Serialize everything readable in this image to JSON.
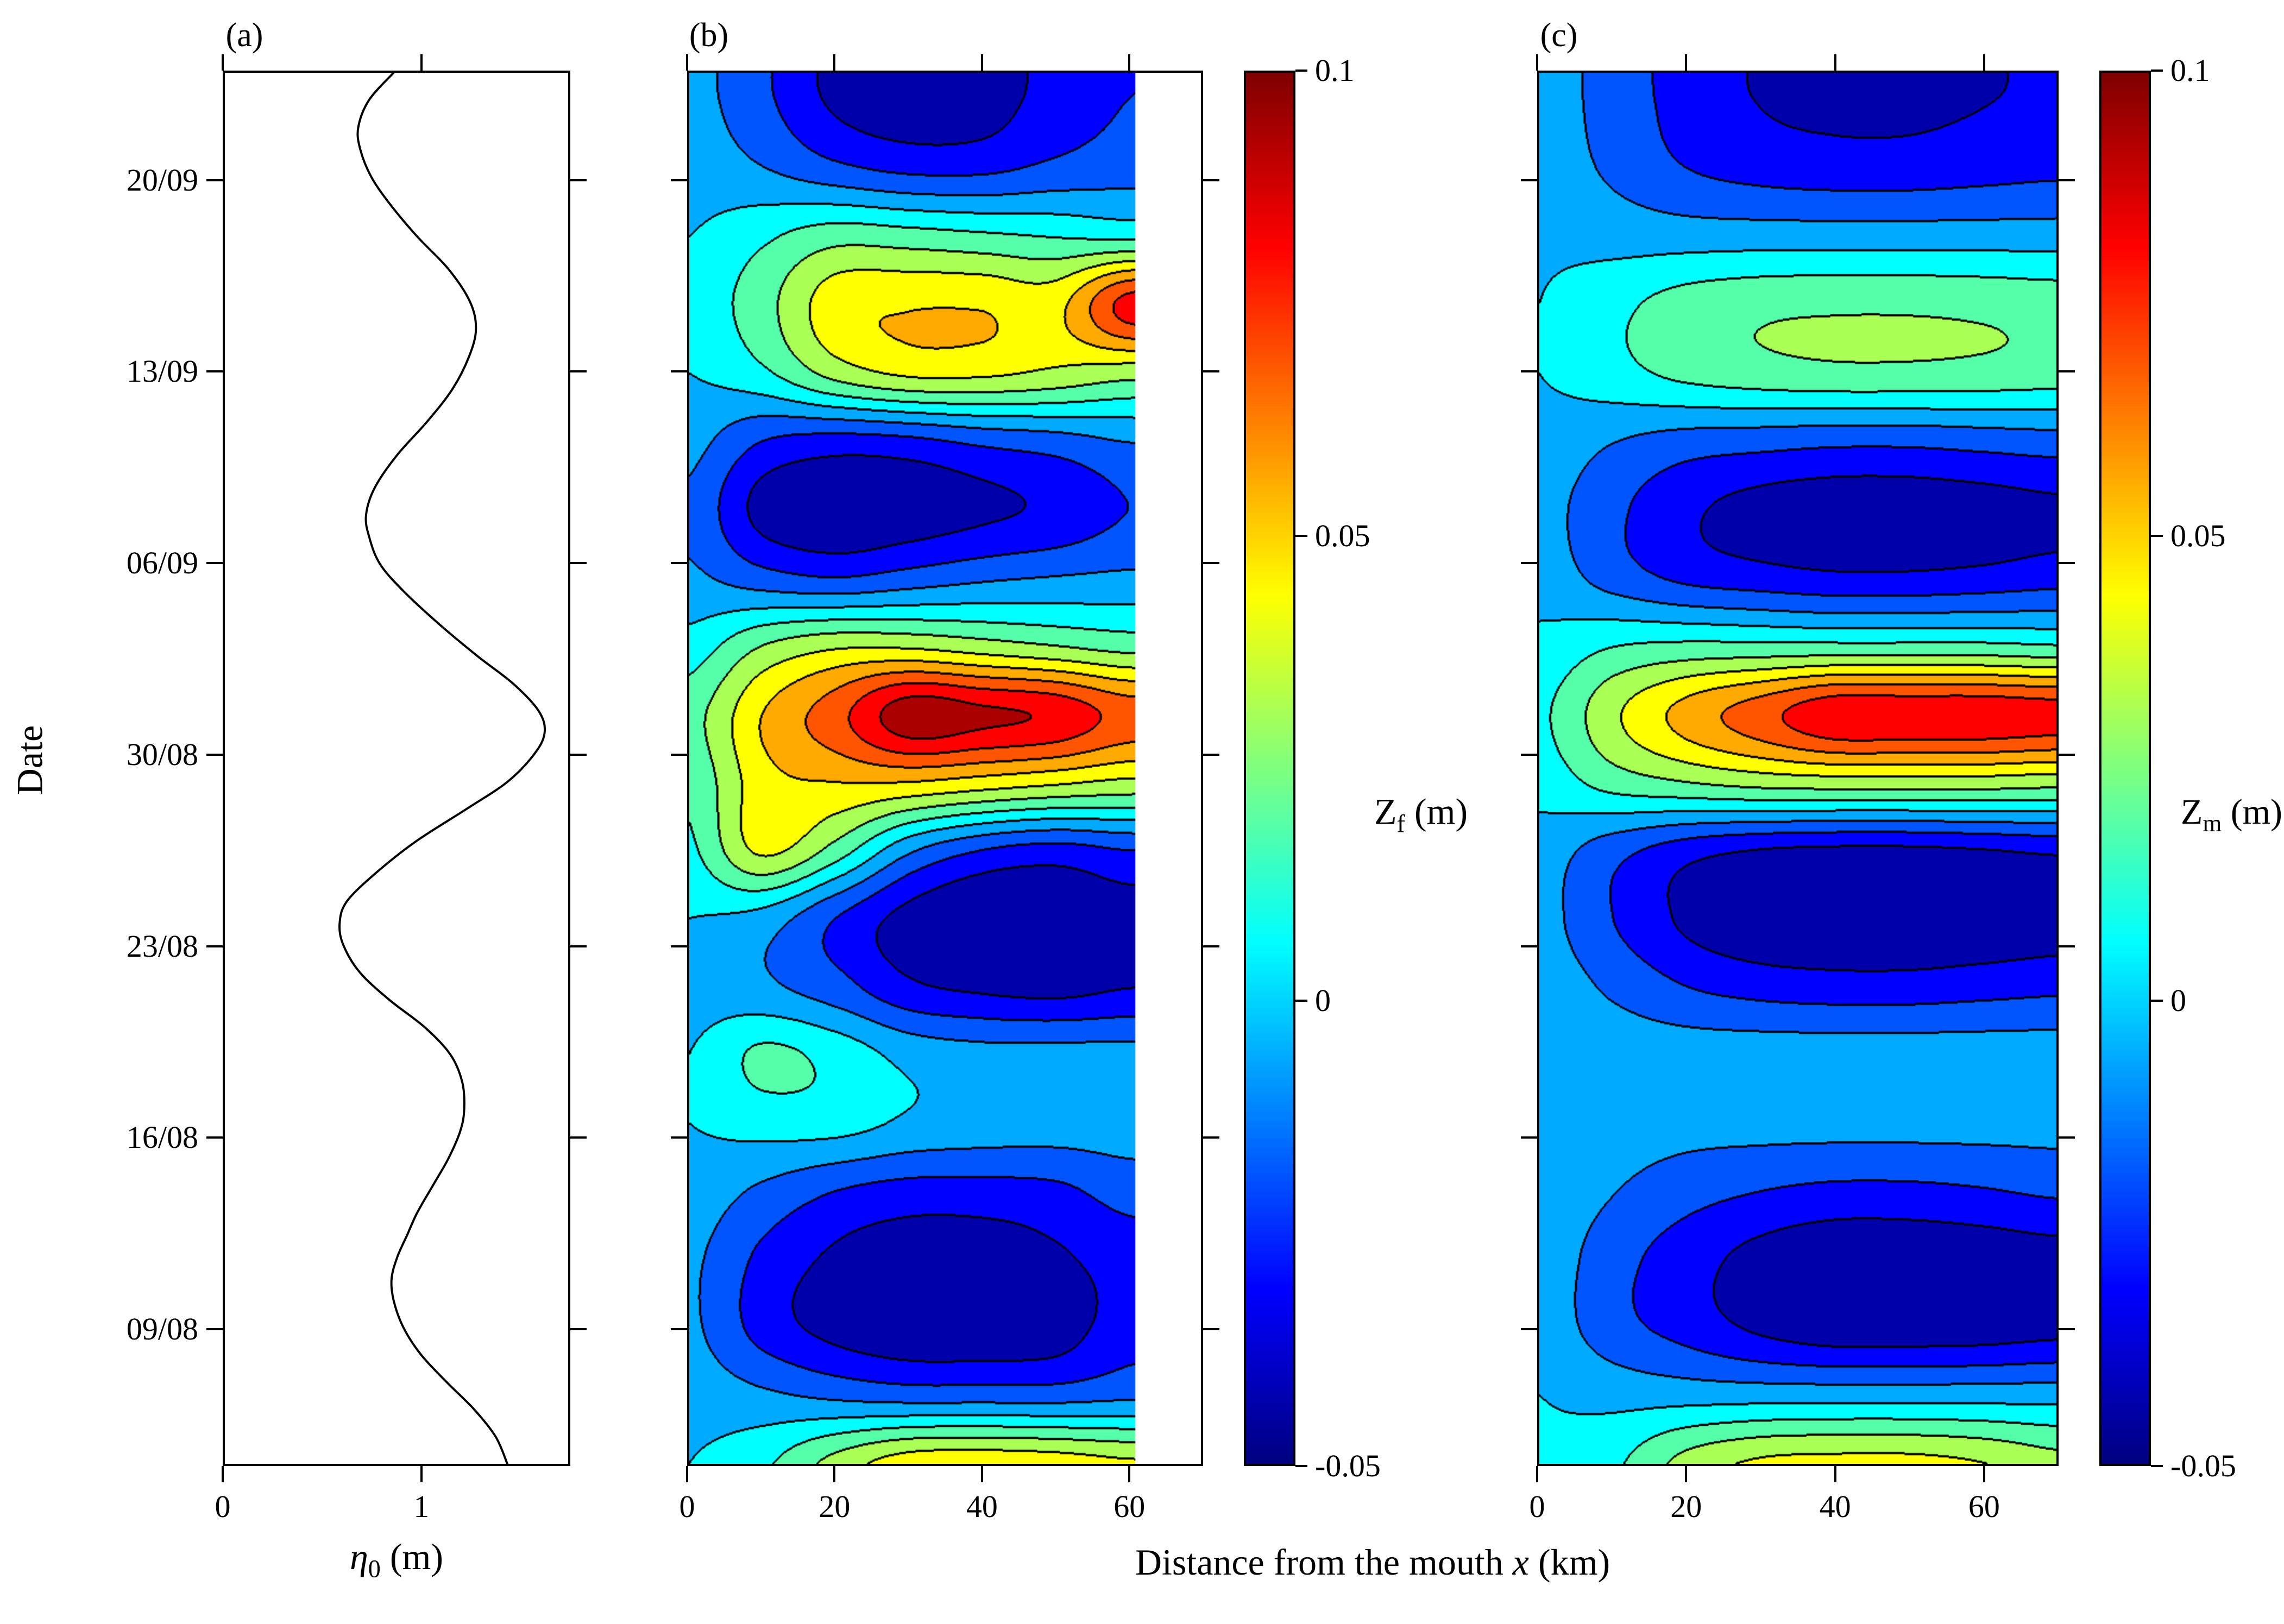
{
  "panel_titles": {
    "a": "(a)",
    "b": "(b)",
    "c": "(c)"
  },
  "ylabel": "Date",
  "eta_label": {
    "symbol": "η",
    "sub": "0",
    "unit": " (m)"
  },
  "shared_xlabel": {
    "prefix": "Distance from the mouth ",
    "var": "x",
    "suffix": " (km)"
  },
  "zf_label": {
    "main": "Z",
    "sub": "f",
    "unit": " (m)"
  },
  "zm_label": {
    "main": "Z",
    "sub": "m",
    "unit": " (m)"
  },
  "axes": {
    "t_lim_days": [
      0,
      51
    ],
    "t_origin_date": "04/08",
    "date_ticks": [
      {
        "day": 5,
        "label": "09/08"
      },
      {
        "day": 12,
        "label": "16/08"
      },
      {
        "day": 19,
        "label": "23/08"
      },
      {
        "day": 26,
        "label": "30/08"
      },
      {
        "day": 33,
        "label": "06/09"
      },
      {
        "day": 40,
        "label": "13/09"
      },
      {
        "day": 47,
        "label": "20/09"
      }
    ]
  },
  "colorbar": {
    "min": -0.05,
    "max": 0.1,
    "colormap": "jet",
    "ticks": [
      {
        "value": 0.1,
        "label": "0.1"
      },
      {
        "value": 0.05,
        "label": "0.05"
      },
      {
        "value": 0,
        "label": "0"
      },
      {
        "value": -0.05,
        "label": "-0.05"
      }
    ]
  },
  "chart_data": [
    {
      "type": "line",
      "panel": "a",
      "title": "(a)",
      "xlabel": "eta0 (m)",
      "ylabel": "Date",
      "xlim": [
        0,
        1.75
      ],
      "xticks": [
        {
          "value": 0,
          "label": "0"
        },
        {
          "value": 1,
          "label": "1"
        }
      ],
      "points_day_eta": [
        [
          0,
          1.44
        ],
        [
          1,
          1.38
        ],
        [
          2,
          1.27
        ],
        [
          3,
          1.13
        ],
        [
          4,
          1.0
        ],
        [
          5,
          0.91
        ],
        [
          6,
          0.86
        ],
        [
          6.8,
          0.85
        ],
        [
          7.6,
          0.88
        ],
        [
          8.4,
          0.93
        ],
        [
          9.2,
          0.98
        ],
        [
          10.2,
          1.06
        ],
        [
          11.2,
          1.14
        ],
        [
          12.2,
          1.2
        ],
        [
          13,
          1.22
        ],
        [
          14,
          1.21
        ],
        [
          15,
          1.15
        ],
        [
          16,
          1.02
        ],
        [
          17,
          0.84
        ],
        [
          18,
          0.69
        ],
        [
          19,
          0.605
        ],
        [
          19.8,
          0.585
        ],
        [
          20.6,
          0.62
        ],
        [
          21.6,
          0.76
        ],
        [
          22.8,
          0.97
        ],
        [
          24,
          1.23
        ],
        [
          25,
          1.44
        ],
        [
          26,
          1.575
        ],
        [
          26.8,
          1.63
        ],
        [
          27.6,
          1.6
        ],
        [
          28.6,
          1.47
        ],
        [
          29.6,
          1.29
        ],
        [
          30.8,
          1.09
        ],
        [
          32,
          0.91
        ],
        [
          33,
          0.79
        ],
        [
          34,
          0.735
        ],
        [
          34.8,
          0.72
        ],
        [
          35.8,
          0.765
        ],
        [
          37,
          0.88
        ],
        [
          38.2,
          1.03
        ],
        [
          39.4,
          1.16
        ],
        [
          40.6,
          1.245
        ],
        [
          41.6,
          1.28
        ],
        [
          42.6,
          1.25
        ],
        [
          43.8,
          1.14
        ],
        [
          45,
          0.98
        ],
        [
          46.2,
          0.84
        ],
        [
          47.2,
          0.745
        ],
        [
          48.2,
          0.69
        ],
        [
          49,
          0.68
        ],
        [
          50,
          0.735
        ],
        [
          51,
          0.86
        ]
      ]
    },
    {
      "type": "heatmap",
      "panel": "b",
      "zlabel": "Zf (m)",
      "colormap": "jet",
      "zlim": [
        -0.05,
        0.1
      ],
      "level_step": 0.0125,
      "xlim_km": [
        0,
        70
      ],
      "data_x_range_km": [
        0,
        61
      ],
      "xticks": [
        {
          "value": 0,
          "label": "0"
        },
        {
          "value": 20,
          "label": "20"
        },
        {
          "value": 40,
          "label": "40"
        },
        {
          "value": 60,
          "label": "60"
        }
      ],
      "x_km": [
        0,
        10,
        20,
        30,
        40,
        50,
        60
      ],
      "t_days": [
        0,
        2.5,
        5,
        7.5,
        10,
        12.5,
        15,
        17.5,
        20,
        22.5,
        25,
        27.5,
        30,
        32.5,
        35,
        37.5,
        40,
        42.5,
        45,
        47.5,
        50
      ],
      "z": [
        [
          0.0,
          0.01,
          0.03,
          0.045,
          0.047,
          0.045,
          0.04
        ],
        [
          -0.005,
          -0.01,
          -0.015,
          -0.018,
          -0.018,
          -0.018,
          -0.015
        ],
        [
          -0.01,
          -0.03,
          -0.042,
          -0.048,
          -0.048,
          -0.045,
          -0.03
        ],
        [
          -0.01,
          -0.028,
          -0.04,
          -0.046,
          -0.046,
          -0.04,
          -0.032
        ],
        [
          -0.005,
          -0.015,
          -0.025,
          -0.03,
          -0.03,
          -0.028,
          -0.02
        ],
        [
          0.0,
          0.005,
          0.005,
          -0.002,
          -0.005,
          -0.006,
          -0.006
        ],
        [
          0.0,
          0.015,
          0.008,
          -0.004,
          -0.008,
          -0.008,
          -0.008
        ],
        [
          -0.005,
          -0.01,
          -0.02,
          -0.035,
          -0.04,
          -0.042,
          -0.038
        ],
        [
          0.0,
          -0.005,
          -0.025,
          -0.042,
          -0.048,
          -0.045,
          -0.042
        ],
        [
          0.01,
          0.04,
          0.02,
          -0.01,
          -0.025,
          -0.03,
          -0.025
        ],
        [
          0.015,
          0.045,
          0.05,
          0.05,
          0.045,
          0.04,
          0.035
        ],
        [
          0.02,
          0.05,
          0.07,
          0.095,
          0.09,
          0.085,
          0.07
        ],
        [
          0.005,
          0.025,
          0.035,
          0.035,
          0.03,
          0.025,
          0.02
        ],
        [
          -0.01,
          -0.02,
          -0.025,
          -0.02,
          -0.015,
          -0.012,
          -0.01
        ],
        [
          -0.015,
          -0.042,
          -0.048,
          -0.045,
          -0.04,
          -0.035,
          -0.025
        ],
        [
          -0.008,
          -0.025,
          -0.03,
          -0.028,
          -0.022,
          -0.018,
          -0.012
        ],
        [
          0.0,
          0.01,
          0.03,
          0.04,
          0.04,
          0.035,
          0.03
        ],
        [
          0.005,
          0.02,
          0.045,
          0.049,
          0.049,
          0.046,
          0.08
        ],
        [
          0.0,
          0.01,
          0.02,
          0.018,
          0.015,
          0.012,
          0.01
        ],
        [
          -0.005,
          -0.012,
          -0.022,
          -0.028,
          -0.028,
          -0.022,
          -0.018
        ],
        [
          -0.008,
          -0.022,
          -0.04,
          -0.046,
          -0.044,
          -0.032,
          -0.025
        ]
      ]
    },
    {
      "type": "heatmap",
      "panel": "c",
      "zlabel": "Zm (m)",
      "colormap": "jet",
      "zlim": [
        -0.05,
        0.1
      ],
      "level_step": 0.0125,
      "xlim_km": [
        0,
        70
      ],
      "data_x_range_km": [
        0,
        70
      ],
      "xticks": [
        {
          "value": 0,
          "label": "0"
        },
        {
          "value": 20,
          "label": "20"
        },
        {
          "value": 40,
          "label": "40"
        },
        {
          "value": 60,
          "label": "60"
        }
      ],
      "x_km": [
        0,
        10,
        20,
        30,
        40,
        50,
        60,
        70
      ],
      "t_days": [
        0,
        2.5,
        5,
        7.5,
        10,
        12.5,
        15,
        17.5,
        20,
        22.5,
        25,
        27.5,
        30,
        32.5,
        35,
        37.5,
        40,
        42.5,
        45,
        47.5,
        50
      ],
      "z": [
        [
          0.0,
          0.01,
          0.03,
          0.04,
          0.042,
          0.042,
          0.038,
          0.03
        ],
        [
          0.0,
          -0.004,
          -0.005,
          -0.005,
          -0.005,
          -0.005,
          -0.005,
          -0.005
        ],
        [
          -0.005,
          -0.02,
          -0.03,
          -0.04,
          -0.046,
          -0.046,
          -0.045,
          -0.042
        ],
        [
          -0.005,
          -0.02,
          -0.032,
          -0.042,
          -0.048,
          -0.048,
          -0.046,
          -0.043
        ],
        [
          -0.003,
          -0.012,
          -0.02,
          -0.025,
          -0.028,
          -0.028,
          -0.026,
          -0.023
        ],
        [
          -0.002,
          -0.006,
          -0.008,
          -0.008,
          -0.008,
          -0.008,
          -0.008,
          -0.008
        ],
        [
          -0.002,
          -0.005,
          -0.006,
          -0.006,
          -0.006,
          -0.006,
          -0.006,
          -0.006
        ],
        [
          -0.005,
          -0.015,
          -0.025,
          -0.03,
          -0.032,
          -0.032,
          -0.03,
          -0.028
        ],
        [
          -0.008,
          -0.025,
          -0.04,
          -0.048,
          -0.05,
          -0.05,
          -0.048,
          -0.045
        ],
        [
          -0.006,
          -0.02,
          -0.032,
          -0.038,
          -0.04,
          -0.04,
          -0.038,
          -0.035
        ],
        [
          0.005,
          0.018,
          0.025,
          0.03,
          0.032,
          0.032,
          0.032,
          0.03
        ],
        [
          0.01,
          0.035,
          0.055,
          0.07,
          0.085,
          0.085,
          0.085,
          0.082
        ],
        [
          0.003,
          0.012,
          0.015,
          0.015,
          0.015,
          0.015,
          0.015,
          0.013
        ],
        [
          -0.005,
          -0.018,
          -0.028,
          -0.032,
          -0.035,
          -0.035,
          -0.033,
          -0.03
        ],
        [
          -0.008,
          -0.022,
          -0.035,
          -0.042,
          -0.045,
          -0.045,
          -0.043,
          -0.04
        ],
        [
          -0.004,
          -0.012,
          -0.018,
          -0.02,
          -0.022,
          -0.022,
          -0.02,
          -0.018
        ],
        [
          0.0,
          0.008,
          0.016,
          0.02,
          0.022,
          0.022,
          0.021,
          0.019
        ],
        [
          0.0,
          0.009,
          0.018,
          0.022,
          0.023,
          0.023,
          0.022,
          0.02
        ],
        [
          -0.002,
          -0.005,
          -0.006,
          -0.006,
          -0.006,
          -0.006,
          -0.006,
          -0.006
        ],
        [
          -0.005,
          -0.015,
          -0.025,
          -0.03,
          -0.032,
          -0.032,
          -0.03,
          -0.028
        ],
        [
          -0.006,
          -0.018,
          -0.03,
          -0.038,
          -0.04,
          -0.04,
          -0.038,
          -0.035
        ]
      ]
    }
  ]
}
